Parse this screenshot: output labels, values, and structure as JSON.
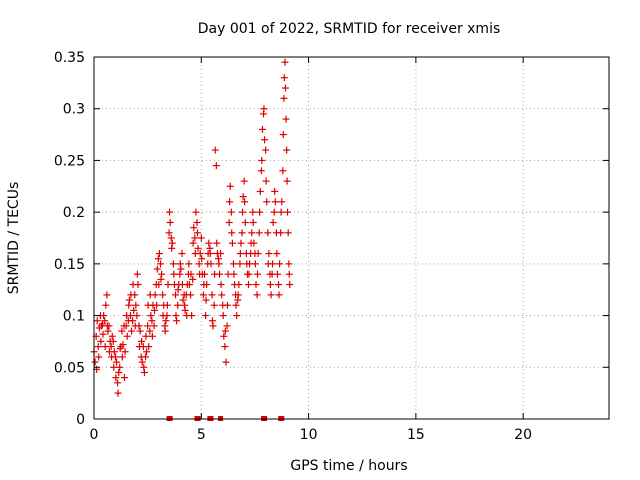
{
  "chart_data": {
    "type": "scatter",
    "title": "Day 001 of 2022, SRMTID for receiver xmis",
    "xlabel": "GPS time / hours",
    "ylabel": "SRMTID / TECUs",
    "xlim": [
      0,
      24
    ],
    "ylim": [
      0,
      0.35
    ],
    "x_ticks": [
      0,
      5,
      10,
      15,
      20
    ],
    "x_tick_labels": [
      "0",
      "5",
      "10",
      "15",
      "20"
    ],
    "y_ticks": [
      0,
      0.05,
      0.1,
      0.15,
      0.2,
      0.25,
      0.3,
      0.35
    ],
    "y_tick_labels": [
      "0",
      "0.05",
      "0.1",
      "0.15",
      "0.2",
      "0.25",
      "0.3",
      "0.35"
    ],
    "grid": true,
    "marker": "+",
    "color": "#dd0000",
    "series": [
      {
        "name": "SRMTID",
        "points": [
          [
            0.0,
            0.065
          ],
          [
            0.05,
            0.055
          ],
          [
            0.1,
            0.08
          ],
          [
            0.12,
            0.048
          ],
          [
            0.15,
            0.095
          ],
          [
            0.2,
            0.07
          ],
          [
            0.22,
            0.06
          ],
          [
            0.25,
            0.088
          ],
          [
            0.3,
            0.1
          ],
          [
            0.32,
            0.075
          ],
          [
            0.35,
            0.09
          ],
          [
            0.4,
            0.092
          ],
          [
            0.42,
            0.082
          ],
          [
            0.45,
            0.1
          ],
          [
            0.5,
            0.095
          ],
          [
            0.52,
            0.07
          ],
          [
            0.55,
            0.11
          ],
          [
            0.6,
            0.12
          ],
          [
            0.62,
            0.09
          ],
          [
            0.65,
            0.085
          ],
          [
            0.7,
            0.09
          ],
          [
            0.72,
            0.065
          ],
          [
            0.75,
            0.075
          ],
          [
            0.8,
            0.07
          ],
          [
            0.82,
            0.06
          ],
          [
            0.85,
            0.08
          ],
          [
            0.9,
            0.075
          ],
          [
            0.92,
            0.05
          ],
          [
            0.95,
            0.065
          ],
          [
            1.0,
            0.06
          ],
          [
            1.02,
            0.04
          ],
          [
            1.05,
            0.055
          ],
          [
            1.1,
            0.035
          ],
          [
            1.12,
            0.025
          ],
          [
            1.15,
            0.045
          ],
          [
            1.2,
            0.05
          ],
          [
            1.22,
            0.068
          ],
          [
            1.25,
            0.07
          ],
          [
            1.3,
            0.085
          ],
          [
            1.32,
            0.06
          ],
          [
            1.35,
            0.072
          ],
          [
            1.4,
            0.09
          ],
          [
            1.42,
            0.04
          ],
          [
            1.45,
            0.065
          ],
          [
            1.5,
            0.09
          ],
          [
            1.52,
            0.1
          ],
          [
            1.55,
            0.08
          ],
          [
            1.6,
            0.095
          ],
          [
            1.62,
            0.11
          ],
          [
            1.65,
            0.115
          ],
          [
            1.7,
            0.1
          ],
          [
            1.72,
            0.12
          ],
          [
            1.75,
            0.085
          ],
          [
            1.8,
            0.095
          ],
          [
            1.82,
            0.13
          ],
          [
            1.85,
            0.105
          ],
          [
            1.9,
            0.12
          ],
          [
            1.92,
            0.09
          ],
          [
            1.95,
            0.11
          ],
          [
            2.0,
            0.1
          ],
          [
            2.02,
            0.14
          ],
          [
            2.05,
            0.13
          ],
          [
            2.1,
            0.09
          ],
          [
            2.12,
            0.07
          ],
          [
            2.15,
            0.085
          ],
          [
            2.2,
            0.06
          ],
          [
            2.22,
            0.075
          ],
          [
            2.25,
            0.055
          ],
          [
            2.3,
            0.07
          ],
          [
            2.32,
            0.05
          ],
          [
            2.35,
            0.045
          ],
          [
            2.4,
            0.06
          ],
          [
            2.42,
            0.08
          ],
          [
            2.45,
            0.065
          ],
          [
            2.5,
            0.09
          ],
          [
            2.52,
            0.11
          ],
          [
            2.55,
            0.07
          ],
          [
            2.6,
            0.085
          ],
          [
            2.62,
            0.12
          ],
          [
            2.65,
            0.1
          ],
          [
            2.7,
            0.095
          ],
          [
            2.72,
            0.08
          ],
          [
            2.75,
            0.11
          ],
          [
            2.8,
            0.09
          ],
          [
            2.82,
            0.105
          ],
          [
            2.85,
            0.12
          ],
          [
            2.9,
            0.13
          ],
          [
            2.92,
            0.11
          ],
          [
            2.95,
            0.145
          ],
          [
            3.0,
            0.155
          ],
          [
            3.02,
            0.13
          ],
          [
            3.05,
            0.16
          ],
          [
            3.1,
            0.15
          ],
          [
            3.12,
            0.135
          ],
          [
            3.15,
            0.14
          ],
          [
            3.2,
            0.12
          ],
          [
            3.22,
            0.1
          ],
          [
            3.25,
            0.11
          ],
          [
            3.3,
            0.09
          ],
          [
            3.32,
            0.085
          ],
          [
            3.35,
            0.095
          ],
          [
            3.4,
            0.1
          ],
          [
            3.42,
            0.11
          ],
          [
            3.45,
            0.13
          ],
          [
            3.5,
            0.18
          ],
          [
            3.52,
            0.2
          ],
          [
            3.55,
            0.19
          ],
          [
            3.6,
            0.175
          ],
          [
            3.62,
            0.165
          ],
          [
            3.65,
            0.17
          ],
          [
            3.7,
            0.15
          ],
          [
            3.72,
            0.14
          ],
          [
            3.75,
            0.13
          ],
          [
            3.8,
            0.12
          ],
          [
            3.82,
            0.1
          ],
          [
            3.85,
            0.095
          ],
          [
            3.9,
            0.11
          ],
          [
            3.92,
            0.125
          ],
          [
            3.95,
            0.13
          ],
          [
            4.0,
            0.14
          ],
          [
            4.02,
            0.15
          ],
          [
            4.05,
            0.145
          ],
          [
            4.1,
            0.16
          ],
          [
            4.12,
            0.13
          ],
          [
            4.15,
            0.115
          ],
          [
            4.2,
            0.12
          ],
          [
            4.22,
            0.11
          ],
          [
            4.25,
            0.105
          ],
          [
            4.3,
            0.12
          ],
          [
            4.32,
            0.1
          ],
          [
            4.35,
            0.13
          ],
          [
            4.4,
            0.14
          ],
          [
            4.42,
            0.15
          ],
          [
            4.45,
            0.13
          ],
          [
            4.5,
            0.12
          ],
          [
            4.52,
            0.14
          ],
          [
            4.55,
            0.1
          ],
          [
            4.6,
            0.135
          ],
          [
            4.62,
            0.17
          ],
          [
            4.65,
            0.185
          ],
          [
            4.7,
            0.175
          ],
          [
            4.72,
            0.16
          ],
          [
            4.75,
            0.2
          ],
          [
            4.8,
            0.19
          ],
          [
            4.82,
            0.18
          ],
          [
            4.85,
            0.165
          ],
          [
            4.9,
            0.15
          ],
          [
            4.92,
            0.14
          ],
          [
            4.95,
            0.16
          ],
          [
            5.0,
            0.175
          ],
          [
            5.02,
            0.155
          ],
          [
            5.05,
            0.14
          ],
          [
            5.1,
            0.12
          ],
          [
            5.12,
            0.13
          ],
          [
            5.15,
            0.14
          ],
          [
            5.2,
            0.1
          ],
          [
            5.22,
            0.115
          ],
          [
            5.25,
            0.13
          ],
          [
            5.3,
            0.15
          ],
          [
            5.32,
            0.16
          ],
          [
            5.35,
            0.17
          ],
          [
            5.4,
            0.165
          ],
          [
            5.42,
            0.16
          ],
          [
            5.45,
            0.15
          ],
          [
            5.5,
            0.12
          ],
          [
            5.52,
            0.095
          ],
          [
            5.55,
            0.09
          ],
          [
            5.6,
            0.11
          ],
          [
            5.62,
            0.14
          ],
          [
            5.65,
            0.26
          ],
          [
            5.7,
            0.245
          ],
          [
            5.72,
            0.17
          ],
          [
            5.75,
            0.16
          ],
          [
            5.8,
            0.155
          ],
          [
            5.82,
            0.15
          ],
          [
            5.85,
            0.14
          ],
          [
            5.9,
            0.16
          ],
          [
            5.92,
            0.13
          ],
          [
            5.95,
            0.12
          ],
          [
            6.0,
            0.11
          ],
          [
            6.02,
            0.1
          ],
          [
            6.05,
            0.08
          ],
          [
            6.1,
            0.07
          ],
          [
            6.12,
            0.085
          ],
          [
            6.15,
            0.055
          ],
          [
            6.2,
            0.09
          ],
          [
            6.22,
            0.11
          ],
          [
            6.25,
            0.14
          ],
          [
            6.3,
            0.19
          ],
          [
            6.32,
            0.21
          ],
          [
            6.35,
            0.225
          ],
          [
            6.4,
            0.2
          ],
          [
            6.42,
            0.18
          ],
          [
            6.45,
            0.17
          ],
          [
            6.5,
            0.15
          ],
          [
            6.52,
            0.14
          ],
          [
            6.55,
            0.13
          ],
          [
            6.6,
            0.12
          ],
          [
            6.62,
            0.11
          ],
          [
            6.65,
            0.1
          ],
          [
            6.7,
            0.115
          ],
          [
            6.72,
            0.12
          ],
          [
            6.75,
            0.13
          ],
          [
            6.8,
            0.15
          ],
          [
            6.82,
            0.16
          ],
          [
            6.85,
            0.17
          ],
          [
            6.9,
            0.18
          ],
          [
            6.92,
            0.2
          ],
          [
            6.95,
            0.215
          ],
          [
            7.0,
            0.23
          ],
          [
            7.02,
            0.21
          ],
          [
            7.05,
            0.19
          ],
          [
            7.1,
            0.16
          ],
          [
            7.12,
            0.15
          ],
          [
            7.15,
            0.14
          ],
          [
            7.2,
            0.13
          ],
          [
            7.22,
            0.14
          ],
          [
            7.25,
            0.15
          ],
          [
            7.3,
            0.16
          ],
          [
            7.32,
            0.17
          ],
          [
            7.35,
            0.18
          ],
          [
            7.4,
            0.2
          ],
          [
            7.42,
            0.19
          ],
          [
            7.45,
            0.17
          ],
          [
            7.5,
            0.16
          ],
          [
            7.52,
            0.15
          ],
          [
            7.55,
            0.13
          ],
          [
            7.6,
            0.12
          ],
          [
            7.62,
            0.14
          ],
          [
            7.65,
            0.16
          ],
          [
            7.7,
            0.18
          ],
          [
            7.72,
            0.2
          ],
          [
            7.75,
            0.22
          ],
          [
            7.8,
            0.24
          ],
          [
            7.82,
            0.25
          ],
          [
            7.85,
            0.28
          ],
          [
            7.9,
            0.295
          ],
          [
            7.92,
            0.3
          ],
          [
            7.95,
            0.27
          ],
          [
            8.0,
            0.26
          ],
          [
            8.02,
            0.23
          ],
          [
            8.05,
            0.21
          ],
          [
            8.1,
            0.18
          ],
          [
            8.12,
            0.15
          ],
          [
            8.15,
            0.16
          ],
          [
            8.2,
            0.14
          ],
          [
            8.22,
            0.13
          ],
          [
            8.25,
            0.12
          ],
          [
            8.3,
            0.14
          ],
          [
            8.32,
            0.15
          ],
          [
            8.35,
            0.19
          ],
          [
            8.4,
            0.2
          ],
          [
            8.42,
            0.22
          ],
          [
            8.45,
            0.21
          ],
          [
            8.5,
            0.18
          ],
          [
            8.52,
            0.16
          ],
          [
            8.55,
            0.14
          ],
          [
            8.6,
            0.13
          ],
          [
            8.62,
            0.12
          ],
          [
            8.65,
            0.15
          ],
          [
            8.7,
            0.18
          ],
          [
            8.72,
            0.2
          ],
          [
            8.75,
            0.21
          ],
          [
            8.8,
            0.24
          ],
          [
            8.82,
            0.275
          ],
          [
            8.85,
            0.31
          ],
          [
            8.87,
            0.33
          ],
          [
            8.9,
            0.345
          ],
          [
            8.92,
            0.32
          ],
          [
            8.95,
            0.29
          ],
          [
            8.98,
            0.26
          ],
          [
            9.0,
            0.23
          ],
          [
            9.02,
            0.2
          ],
          [
            9.05,
            0.18
          ],
          [
            9.08,
            0.15
          ],
          [
            9.1,
            0.14
          ],
          [
            9.12,
            0.13
          ]
        ]
      }
    ],
    "gap_markers_x": [
      3.5,
      3.55,
      4.8,
      4.85,
      5.4,
      5.45,
      5.9,
      7.9,
      7.95,
      8.7,
      8.75
    ]
  }
}
